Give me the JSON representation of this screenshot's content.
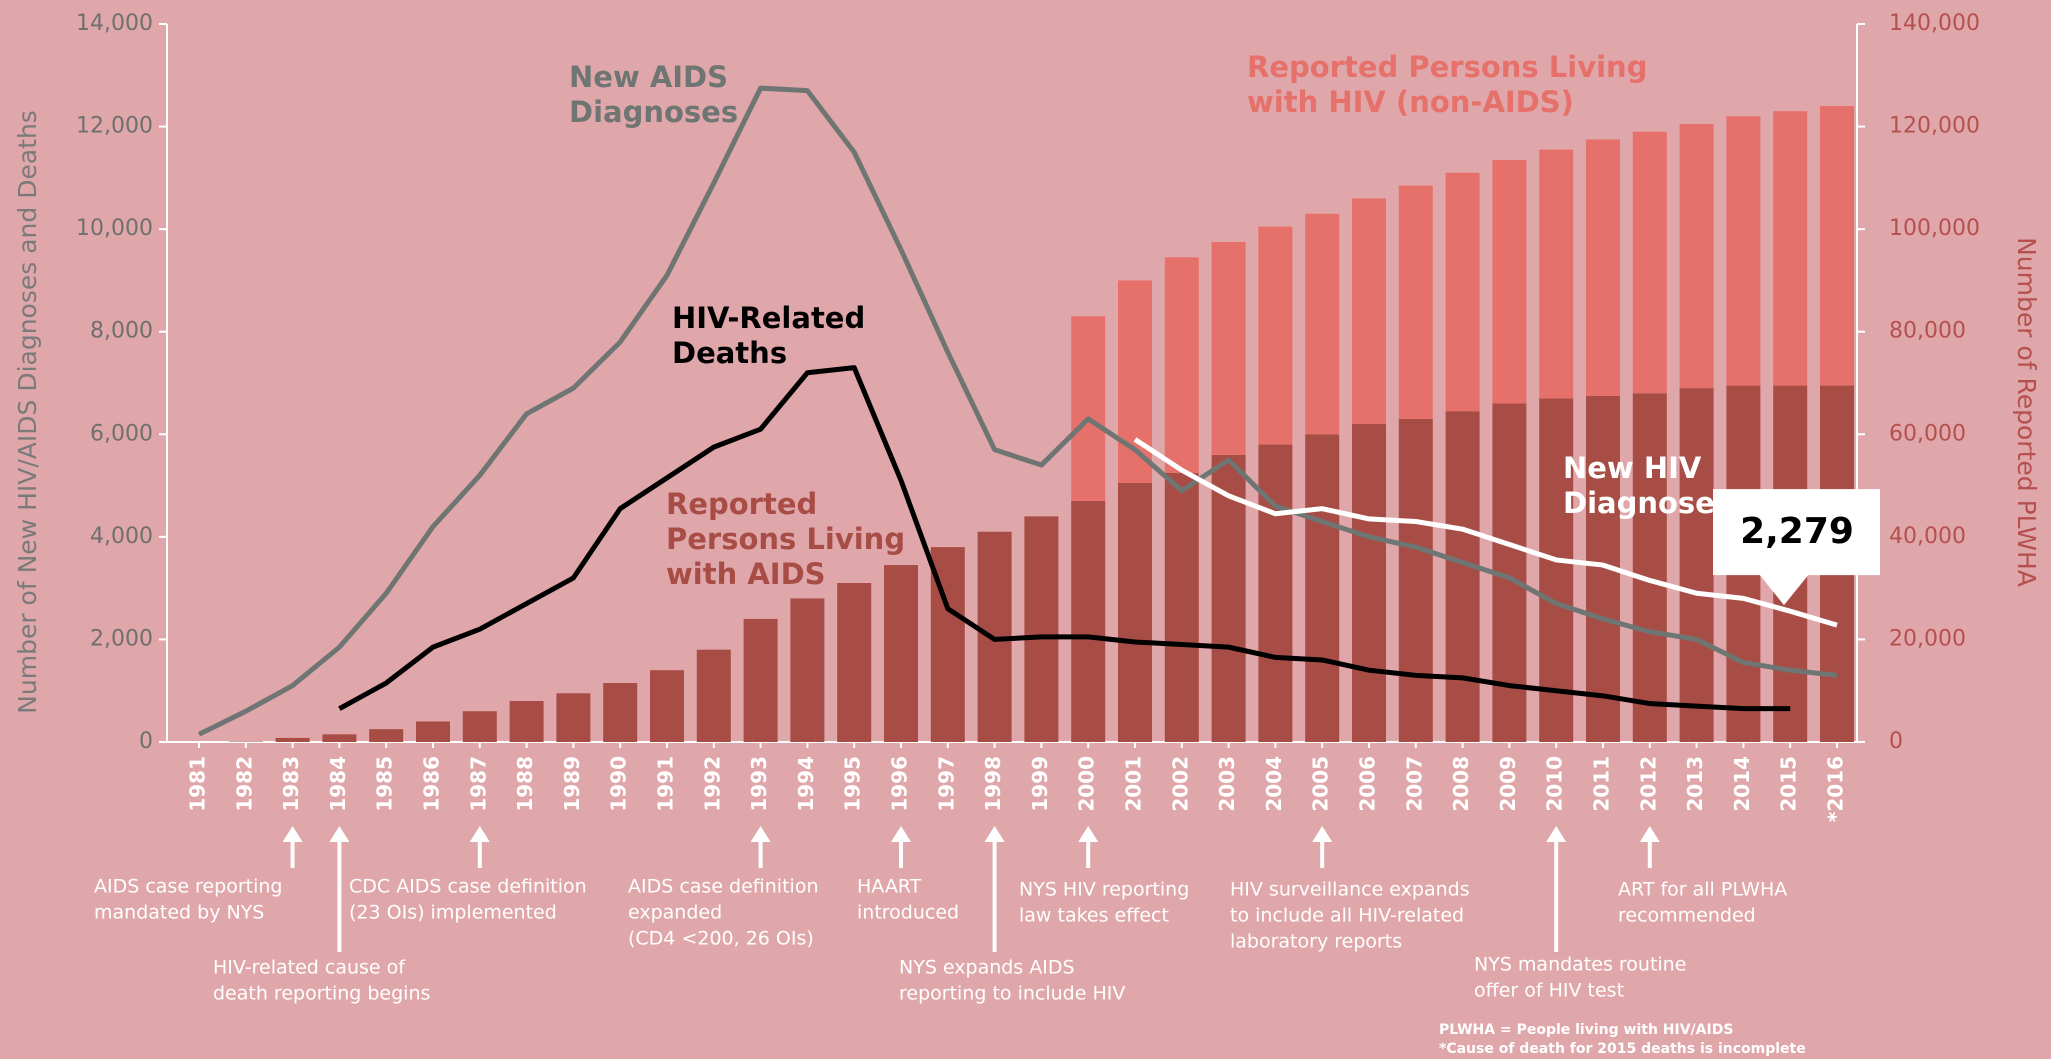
{
  "chart_data": {
    "type": "bar-line",
    "y_label": "Number of New HIV/AIDS Diagnoses and Deaths",
    "y2_label": "Number of Reported PLWHA",
    "categories": [
      "1981",
      "1982",
      "1983",
      "1984",
      "1985",
      "1986",
      "1987",
      "1988",
      "1989",
      "1990",
      "1991",
      "1992",
      "1993",
      "1994",
      "1995",
      "1996",
      "1997",
      "1998",
      "1999",
      "2000",
      "2001",
      "2002",
      "2003",
      "2004",
      "2005",
      "2006",
      "2007",
      "2008",
      "2009",
      "2010",
      "2011",
      "2012",
      "2013",
      "2014",
      "2015",
      "*2016"
    ],
    "ylim": [
      0,
      14000
    ],
    "yticks": [
      0,
      {
        "value": 2000,
        "label": "2,000"
      },
      {
        "value": 4000,
        "label": "4,000"
      },
      {
        "value": 6000,
        "label": "6,000"
      },
      {
        "value": 8000,
        "label": "8,000"
      },
      {
        "value": 10000,
        "label": "10,000"
      },
      {
        "value": 12000,
        "label": "12,000"
      },
      {
        "value": 14000,
        "label": "14,000"
      }
    ],
    "y2lim": [
      0,
      140000
    ],
    "y2ticks": [
      0,
      {
        "value": 20000,
        "label": "20,000"
      },
      {
        "value": 40000,
        "label": "40,000"
      },
      {
        "value": 60000,
        "label": "60,000"
      },
      {
        "value": 80000,
        "label": "80,000"
      },
      {
        "value": 100000,
        "label": "100,000"
      },
      {
        "value": 120000,
        "label": "120,000"
      },
      {
        "value": 140000,
        "label": "140,000"
      }
    ],
    "series": [
      {
        "name": "Reported Persons Living with AIDS",
        "type": "bar",
        "axis": "y2",
        "color": "#a84d45",
        "values": [
          0,
          100,
          800,
          1500,
          2500,
          4000,
          6000,
          8000,
          9500,
          11500,
          14000,
          18000,
          24000,
          28000,
          31000,
          34500,
          38000,
          41000,
          44000,
          47000,
          50500,
          52500,
          56000,
          58000,
          60000,
          62000,
          63000,
          64500,
          66000,
          67000,
          67500,
          68000,
          69000,
          69500,
          69500,
          69500
        ]
      },
      {
        "name": "Reported Persons Living with HIV (non-AIDS)",
        "type": "bar",
        "axis": "y2",
        "color": "#e6716a",
        "values": [
          null,
          null,
          null,
          null,
          null,
          null,
          null,
          null,
          null,
          null,
          null,
          null,
          null,
          null,
          null,
          null,
          null,
          null,
          null,
          36000,
          39500,
          42000,
          41500,
          42500,
          43000,
          44000,
          45500,
          46500,
          47500,
          48500,
          50000,
          51000,
          51500,
          52500,
          53500,
          54500
        ]
      },
      {
        "name": "New AIDS Diagnoses",
        "type": "line",
        "color": "#6e7572",
        "values": [
          150,
          600,
          1100,
          1850,
          2900,
          4200,
          5200,
          6400,
          6900,
          7800,
          9100,
          10900,
          12750,
          12700,
          11500,
          9600,
          7600,
          5700,
          5400,
          6300,
          5700,
          4900,
          5500,
          4600,
          4300,
          4000,
          3800,
          3500,
          3200,
          2700,
          2400,
          2150,
          2000,
          1550,
          1400,
          1300
        ]
      },
      {
        "name": "HIV-Related Deaths",
        "type": "line",
        "color": "#000000",
        "values": [
          null,
          null,
          null,
          650,
          1150,
          1850,
          2200,
          2700,
          3200,
          4550,
          5150,
          5750,
          6100,
          7200,
          7300,
          5100,
          2600,
          2000,
          2050,
          2050,
          1950,
          1900,
          1850,
          1650,
          1600,
          1400,
          1300,
          1250,
          1100,
          1000,
          900,
          750,
          700,
          650,
          650,
          null
        ]
      },
      {
        "name": "New HIV Diagnoses",
        "type": "line",
        "color": "#ffffff",
        "values": [
          null,
          null,
          null,
          null,
          null,
          null,
          null,
          null,
          null,
          null,
          null,
          null,
          null,
          null,
          null,
          null,
          null,
          null,
          null,
          null,
          5900,
          5300,
          4800,
          4450,
          4550,
          4350,
          4300,
          4150,
          3850,
          3550,
          3450,
          3150,
          2900,
          2800,
          2550,
          2279
        ],
        "value_labels": [
          null,
          null,
          null,
          null,
          null,
          null,
          null,
          null,
          null,
          null,
          null,
          null,
          null,
          null,
          null,
          null,
          null,
          null,
          null,
          null,
          null,
          null,
          null,
          null,
          null,
          null,
          null,
          null,
          null,
          null,
          null,
          null,
          null,
          null,
          null,
          "2,279"
        ]
      }
    ],
    "annotations": [
      {
        "lines": [
          "AIDS case reporting",
          "mandated by NYS"
        ]
      },
      {
        "lines": [
          "HIV-related cause of",
          "death reporting begins"
        ]
      },
      {
        "lines": [
          "CDC AIDS case definition",
          "(23 OIs) implemented"
        ]
      },
      {
        "lines": [
          "AIDS case definition",
          "expanded",
          "(CD4 <200, 26 OIs)"
        ]
      },
      {
        "lines": [
          "HAART",
          "introduced"
        ]
      },
      {
        "lines": [
          "NYS expands AIDS",
          "reporting to include HIV"
        ]
      },
      {
        "lines": [
          "NYS HIV reporting",
          "law takes effect"
        ]
      },
      {
        "lines": [
          "HIV surveillance expands",
          "to include all HIV-related",
          "laboratory reports"
        ]
      },
      {
        "lines": [
          "NYS mandates routine",
          "offer of HIV test"
        ]
      },
      {
        "lines": [
          "ART for all PLWHA",
          "recommended"
        ]
      }
    ],
    "footnotes": [
      "PLWHA = People living with HIV/AIDS",
      "*Cause of death for 2015 deaths is incomplete"
    ]
  }
}
